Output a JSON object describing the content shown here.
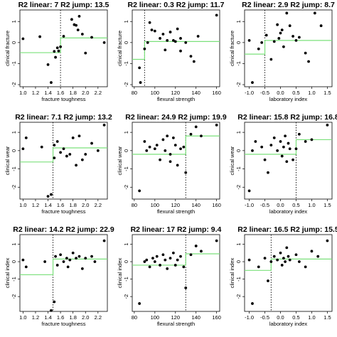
{
  "chart_data": [
    {
      "type": "scatter",
      "title": "R2 linear: 7   R2 jump: 13.5",
      "xlabel": "fracture toughness",
      "ylabel": "clinical fracture",
      "xlim": [
        0.95,
        2.35
      ],
      "ylim": [
        -2.1,
        1.55
      ],
      "xticks": [
        1.0,
        1.2,
        1.4,
        1.6,
        1.8,
        2.0,
        2.2
      ],
      "yticks": [
        -2.0,
        -1.0,
        0.0,
        1.0
      ],
      "threshold": 1.6,
      "jump": {
        "left": -0.48,
        "right": 0.22
      },
      "x": [
        1.0,
        1.27,
        1.4,
        1.45,
        1.5,
        1.52,
        1.55,
        1.57,
        1.6,
        1.65,
        1.78,
        1.82,
        1.85,
        1.88,
        1.9,
        1.95,
        2.0,
        2.1,
        2.3
      ],
      "y": [
        0.18,
        0.28,
        -1.05,
        -1.9,
        -0.42,
        -0.7,
        -0.25,
        -0.4,
        -0.2,
        0.3,
        1.1,
        0.85,
        0.82,
        0.6,
        1.25,
        0.4,
        -0.5,
        0.25,
        0.0
      ]
    },
    {
      "type": "scatter",
      "title": "R2 linear: 0.3   R2 jump: 11.7",
      "xlabel": "flexural strength",
      "ylabel": "clinical fracture",
      "xlim": [
        78,
        163
      ],
      "ylim": [
        -2.1,
        1.55
      ],
      "xticks": [
        80,
        100,
        120,
        140,
        160
      ],
      "yticks": [
        -2.0,
        -1.0,
        0.0,
        1.0
      ],
      "threshold": 90,
      "jump": {
        "left": -0.8,
        "right": 0.05
      },
      "x": [
        85,
        86,
        90,
        93,
        95,
        97,
        100,
        105,
        108,
        110,
        112,
        115,
        118,
        120,
        122,
        125,
        125,
        130,
        135,
        138,
        142,
        160
      ],
      "y": [
        -1.2,
        -1.9,
        -0.3,
        0.0,
        0.95,
        0.6,
        0.55,
        0.2,
        0.4,
        -0.35,
        0.1,
        0.5,
        0.1,
        0.05,
        0.65,
        0.2,
        -0.4,
        0.0,
        -0.65,
        -0.9,
        0.3,
        1.3
      ]
    },
    {
      "type": "scatter",
      "title": "R2 linear: 2.9   R2 jump: 8.7",
      "xlabel": "laboratory index",
      "ylabel": "clinical fracture",
      "xlim": [
        -1.15,
        1.65
      ],
      "ylim": [
        -2.1,
        1.55
      ],
      "xticks": [
        -1.0,
        -0.5,
        0.0,
        0.5,
        1.0,
        1.5
      ],
      "yticks": [
        -2.0,
        -1.0,
        0.0,
        1.0
      ],
      "threshold": -0.5,
      "jump": {
        "left": -0.55,
        "right": 0.1
      },
      "x": [
        -1.0,
        -0.9,
        -0.7,
        -0.6,
        -0.45,
        -0.3,
        -0.2,
        -0.1,
        -0.05,
        0.0,
        0.05,
        0.1,
        0.2,
        0.3,
        0.4,
        0.5,
        0.6,
        0.8,
        0.9,
        1.1,
        1.3
      ],
      "y": [
        0.1,
        -1.9,
        -0.3,
        0.0,
        0.35,
        -0.8,
        0.05,
        0.85,
        0.2,
        0.45,
        0.6,
        -0.2,
        1.4,
        0.8,
        0.3,
        0.1,
        0.25,
        -0.5,
        -0.9,
        1.4,
        0.8
      ]
    },
    {
      "type": "scatter",
      "title": "R2 linear: 7.1   R2 jump: 13.2",
      "xlabel": "fracture toughness",
      "ylabel": "clinical wear",
      "xlim": [
        0.95,
        2.35
      ],
      "ylim": [
        -2.65,
        1.55
      ],
      "xticks": [
        1.0,
        1.2,
        1.4,
        1.6,
        1.8,
        2.0,
        2.2
      ],
      "yticks": [
        -2,
        -1,
        0,
        1
      ],
      "threshold": 1.48,
      "jump": {
        "left": -0.62,
        "right": 0.15
      },
      "x": [
        1.0,
        1.05,
        1.3,
        1.4,
        1.45,
        1.5,
        1.5,
        1.55,
        1.6,
        1.65,
        1.7,
        1.75,
        1.8,
        1.85,
        1.9,
        1.95,
        2.0,
        2.1,
        2.2,
        2.3
      ],
      "y": [
        0.1,
        0.7,
        0.2,
        -2.5,
        -2.4,
        0.3,
        -0.4,
        0.5,
        -0.1,
        0.1,
        -0.3,
        -0.2,
        0.7,
        -0.8,
        0.8,
        -0.5,
        -0.2,
        0.4,
        0.0,
        1.4
      ]
    },
    {
      "type": "scatter",
      "title": "R2 linear: 24.9   R2 jump: 19.9",
      "xlabel": "flexural strength",
      "ylabel": "clinical wear",
      "xlim": [
        78,
        163
      ],
      "ylim": [
        -2.65,
        1.55
      ],
      "xticks": [
        80,
        100,
        120,
        140,
        160
      ],
      "yticks": [
        -2,
        -1,
        0,
        1
      ],
      "threshold": 130,
      "jump": {
        "left": -0.2,
        "right": 0.8
      },
      "x": [
        85,
        90,
        92,
        95,
        100,
        102,
        105,
        108,
        110,
        112,
        115,
        115,
        118,
        120,
        122,
        125,
        128,
        130,
        135,
        140,
        145,
        160
      ],
      "y": [
        -2.2,
        0.5,
        0.0,
        0.2,
        0.1,
        0.3,
        -0.5,
        0.6,
        0.0,
        0.8,
        -0.2,
        -0.6,
        0.7,
        0.3,
        -0.8,
        0.1,
        0.2,
        -1.2,
        0.9,
        1.3,
        0.8,
        1.4
      ]
    },
    {
      "type": "scatter",
      "title": "R2 linear: 15.8   R2 jump: 16.8",
      "xlabel": "laboratory index",
      "ylabel": "clinical wear",
      "xlim": [
        -1.15,
        1.65
      ],
      "ylim": [
        -2.65,
        1.55
      ],
      "xticks": [
        -1.0,
        -0.5,
        0.0,
        0.5,
        1.0,
        1.5
      ],
      "yticks": [
        -2,
        -1,
        0,
        1
      ],
      "threshold": 0.5,
      "jump": {
        "left": -0.2,
        "right": 0.6
      },
      "x": [
        -1.0,
        -0.9,
        -0.8,
        -0.6,
        -0.5,
        -0.4,
        -0.3,
        -0.2,
        -0.1,
        0.0,
        0.05,
        0.1,
        0.15,
        0.2,
        0.25,
        0.3,
        0.4,
        0.5,
        0.6,
        0.8,
        1.0,
        1.5
      ],
      "y": [
        -2.2,
        0.0,
        0.5,
        0.2,
        -0.5,
        -1.2,
        0.3,
        0.7,
        0.0,
        0.5,
        -0.3,
        0.2,
        0.8,
        -0.6,
        0.4,
        0.1,
        -0.5,
        0.1,
        0.9,
        0.5,
        0.6,
        1.4
      ]
    },
    {
      "type": "scatter",
      "title": "R2 linear: 14.2   R2 jump: 22.9",
      "xlabel": "fracture toughness",
      "ylabel": "clinical index",
      "xlim": [
        0.95,
        2.35
      ],
      "ylim": [
        -2.85,
        1.55
      ],
      "xticks": [
        1.0,
        1.2,
        1.4,
        1.6,
        1.8,
        2.0,
        2.2
      ],
      "yticks": [
        -2,
        -1,
        0,
        1
      ],
      "threshold": 1.48,
      "jump": {
        "left": -0.75,
        "right": 0.15
      },
      "x": [
        1.0,
        1.05,
        1.35,
        1.45,
        1.5,
        1.52,
        1.55,
        1.6,
        1.65,
        1.7,
        1.72,
        1.75,
        1.8,
        1.85,
        1.9,
        1.95,
        2.0,
        2.1,
        2.15,
        2.3
      ],
      "y": [
        0.1,
        -0.3,
        0.0,
        -2.8,
        -2.3,
        0.3,
        -0.2,
        0.4,
        0.0,
        0.2,
        -0.3,
        0.1,
        0.5,
        0.2,
        0.3,
        -0.4,
        0.2,
        0.3,
        0.0,
        1.2
      ]
    },
    {
      "type": "scatter",
      "title": "R2 linear: 17   R2 jump: 9.4",
      "xlabel": "flexural strength",
      "ylabel": "clinical index",
      "xlim": [
        78,
        163
      ],
      "ylim": [
        -2.85,
        1.55
      ],
      "xticks": [
        80,
        100,
        120,
        140,
        160
      ],
      "yticks": [
        -2,
        -1,
        0,
        1
      ],
      "threshold": 130,
      "jump": {
        "left": -0.2,
        "right": 0.45
      },
      "x": [
        85,
        90,
        92,
        95,
        98,
        100,
        102,
        105,
        108,
        110,
        112,
        115,
        118,
        120,
        122,
        125,
        128,
        130,
        135,
        140,
        145,
        160
      ],
      "y": [
        -2.4,
        0.0,
        0.1,
        -0.3,
        0.2,
        0.0,
        0.3,
        -0.2,
        0.4,
        0.1,
        -0.4,
        0.2,
        0.5,
        -0.2,
        0.1,
        0.3,
        -0.3,
        -1.5,
        0.4,
        0.9,
        0.6,
        1.2
      ]
    },
    {
      "type": "scatter",
      "title": "R2 linear: 16.5   R2 jump: 15.5",
      "xlabel": "laboratory index",
      "ylabel": "clinical index",
      "xlim": [
        -1.15,
        1.65
      ],
      "ylim": [
        -2.85,
        1.55
      ],
      "xticks": [
        -1.0,
        -0.5,
        0.0,
        0.5,
        1.0,
        1.5
      ],
      "yticks": [
        -2,
        -1,
        0,
        1
      ],
      "threshold": -0.3,
      "jump": {
        "left": -0.5,
        "right": 0.15
      },
      "x": [
        -1.0,
        -0.9,
        -0.7,
        -0.5,
        -0.4,
        -0.3,
        -0.2,
        -0.1,
        0.0,
        0.05,
        0.1,
        0.15,
        0.2,
        0.25,
        0.3,
        0.5,
        0.6,
        0.8,
        1.0,
        1.2,
        1.5
      ],
      "y": [
        0.1,
        -2.4,
        -0.3,
        0.2,
        -1.1,
        0.0,
        0.3,
        0.1,
        0.5,
        -0.2,
        0.2,
        0.0,
        0.8,
        0.3,
        0.1,
        0.4,
        0.0,
        -0.3,
        0.6,
        0.3,
        1.2
      ]
    }
  ]
}
